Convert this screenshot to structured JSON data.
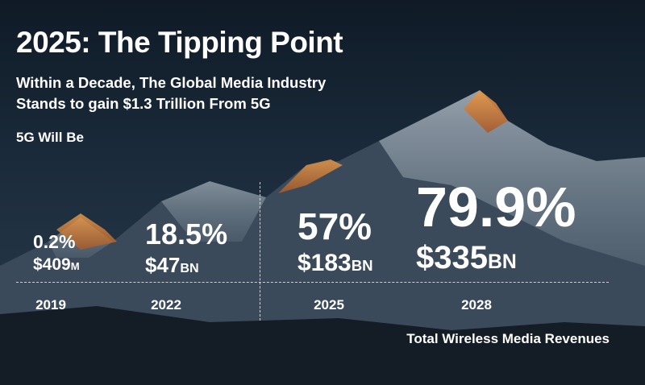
{
  "header": {
    "title": "2025: The Tipping Point",
    "subtitle_line1": "Within a Decade, The Global Media Industry",
    "subtitle_line2": "Stands to gain $1.3 Trillion From 5G",
    "intro": "5G Will Be"
  },
  "stats": [
    {
      "year": "2019",
      "percent": "0.2%",
      "amount": "$409",
      "unit": "M"
    },
    {
      "year": "2022",
      "percent": "18.5%",
      "amount": "$47",
      "unit": "BN"
    },
    {
      "year": "2025",
      "percent": "57%",
      "amount": "$183",
      "unit": "BN"
    },
    {
      "year": "2028",
      "percent": "79.9%",
      "amount": "$335",
      "unit": "BN"
    }
  ],
  "footnote": "Total Wireless Media Revenues",
  "colors": {
    "sky": "#1a2a3a",
    "mountain_dark": "#2a3a4a",
    "snow": "#c9d2da",
    "alpenglow": "#d9833a"
  }
}
